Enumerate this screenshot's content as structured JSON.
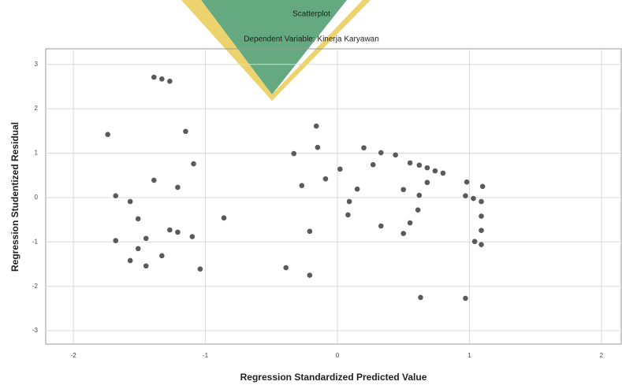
{
  "chart_data": {
    "type": "scatter",
    "title": "Scatterplot",
    "subtitle": "Dependent Variable: Kinerja Karyawan",
    "x_label": "Regression Standardized Predicted Value",
    "y_label": "Regression Studentized Residual",
    "color": "#5a5a5a",
    "grid": true,
    "xlim": [
      -2.21,
      2.15
    ],
    "ylim": [
      -3.3,
      3.35
    ],
    "xticks": [
      -2,
      -1,
      0,
      1,
      2
    ],
    "yticks": [
      -3,
      -2,
      -1,
      0,
      1,
      2,
      3
    ],
    "x": [
      -1.39,
      -1.33,
      -1.27,
      -1.74,
      -1.15,
      -1.09,
      -1.39,
      -1.21,
      -1.68,
      -1.57,
      -1.51,
      -1.68,
      -1.45,
      -1.27,
      -1.21,
      -1.1,
      -1.51,
      -1.33,
      -1.57,
      -1.45,
      -1.04,
      -0.86,
      -0.16,
      -0.15,
      -0.33,
      -0.09,
      -0.27,
      0.02,
      0.15,
      0.09,
      0.08,
      -0.21,
      -0.39,
      -0.21,
      0.2,
      0.33,
      0.44,
      0.27,
      0.55,
      0.62,
      0.68,
      0.74,
      0.8,
      0.68,
      0.5,
      0.62,
      0.61,
      0.55,
      0.33,
      0.5,
      0.63,
      0.98,
      0.97,
      1.03,
      1.1,
      1.09,
      1.09,
      1.09,
      1.04,
      1.09,
      0.97
    ],
    "y": [
      2.71,
      2.67,
      2.62,
      1.42,
      1.49,
      0.76,
      0.39,
      0.23,
      0.04,
      -0.09,
      -0.48,
      -0.97,
      -0.92,
      -0.73,
      -0.78,
      -0.88,
      -1.15,
      -1.31,
      -1.42,
      -1.54,
      -1.61,
      -0.46,
      1.61,
      1.13,
      0.99,
      0.42,
      0.27,
      0.64,
      0.19,
      -0.09,
      -0.39,
      -0.76,
      -1.58,
      -1.75,
      1.12,
      1.01,
      0.96,
      0.74,
      0.78,
      0.73,
      0.67,
      0.6,
      0.55,
      0.34,
      0.18,
      0.05,
      -0.28,
      -0.57,
      -0.64,
      -0.81,
      -2.25,
      0.35,
      0.04,
      -0.02,
      0.25,
      -0.09,
      -0.42,
      -0.74,
      -0.99,
      -1.06,
      -2.27
    ]
  }
}
